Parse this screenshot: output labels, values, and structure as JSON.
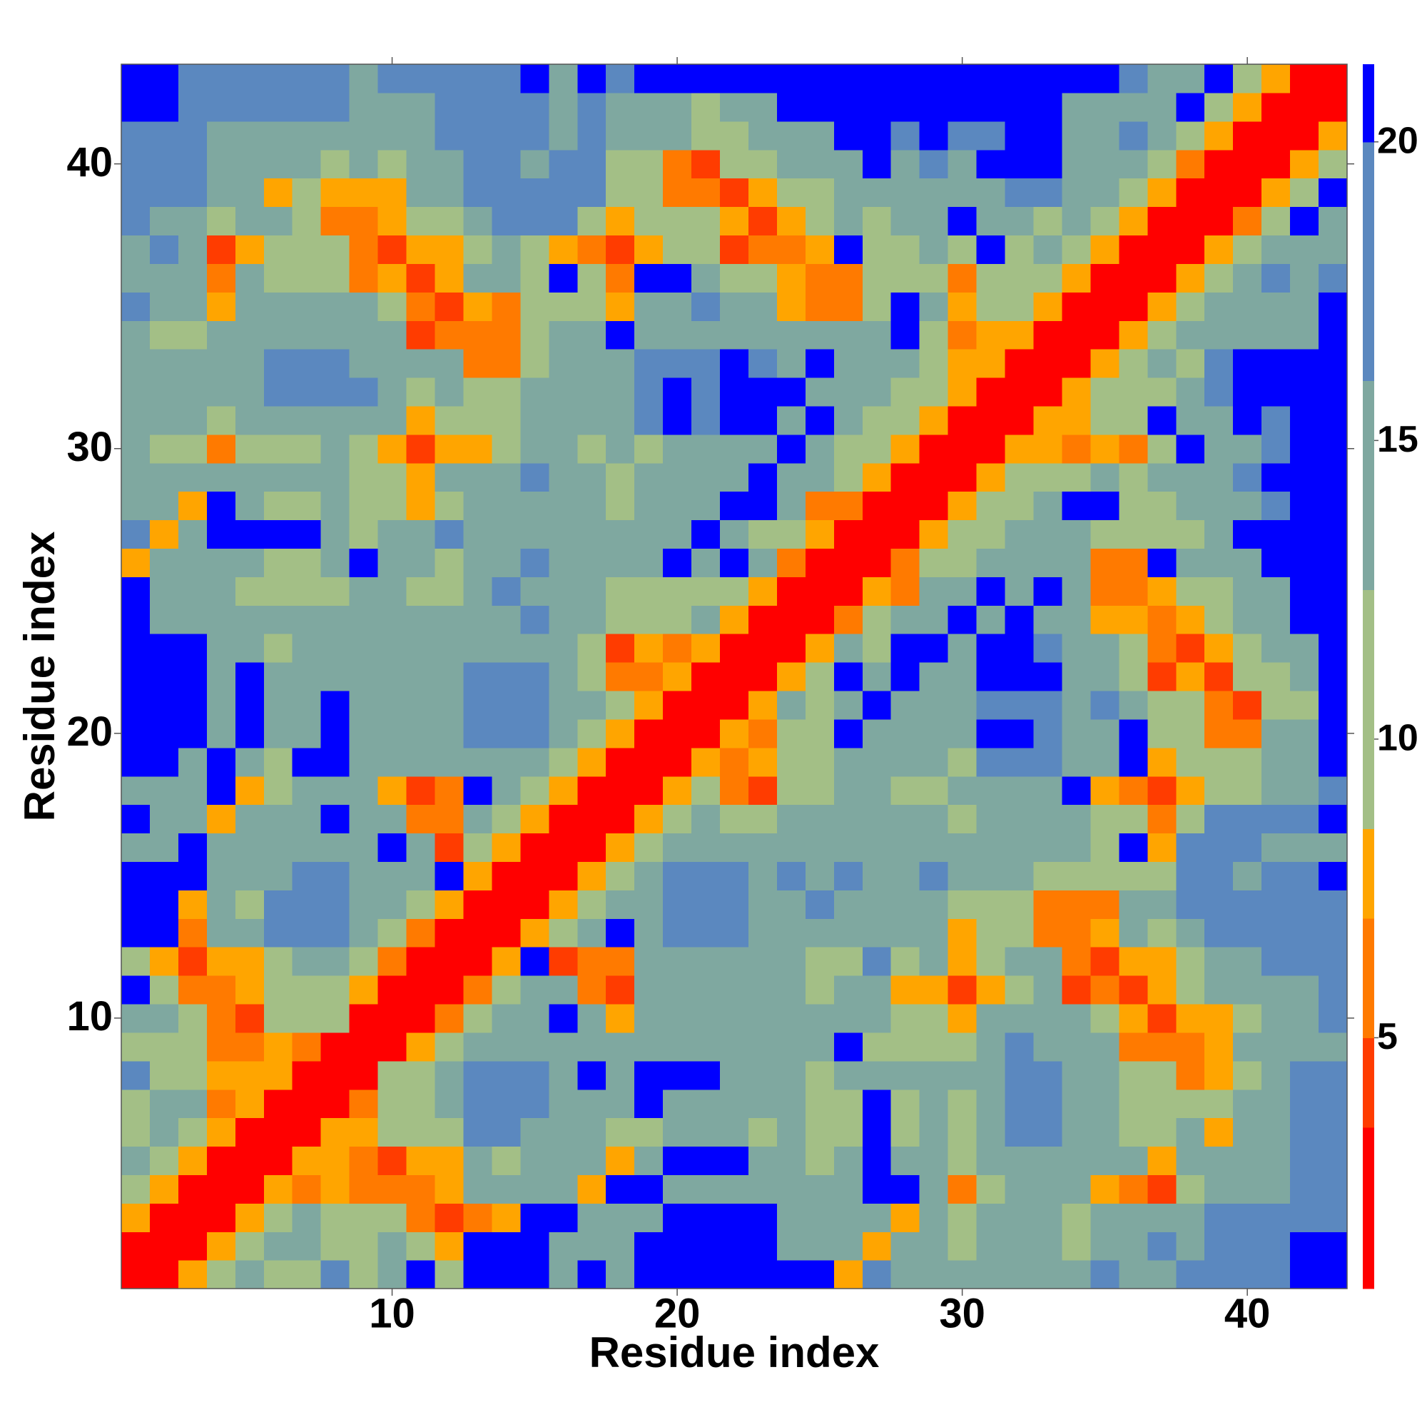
{
  "chart_data": {
    "type": "heatmap",
    "xlabel": "Residue index",
    "ylabel": "Residue index",
    "x": [
      1,
      2,
      3,
      4,
      5,
      6,
      7,
      8,
      9,
      10,
      11,
      12,
      13,
      14,
      15,
      16,
      17,
      18,
      19,
      20,
      21,
      22,
      23,
      24,
      25,
      26,
      27,
      28,
      29,
      30,
      31,
      32,
      33,
      34,
      35,
      36,
      37,
      38,
      39,
      40,
      41,
      42,
      43
    ],
    "xlim": [
      0.5,
      43.5
    ],
    "ylim": [
      0.5,
      43.5
    ],
    "xticks": [
      10,
      20,
      30,
      40
    ],
    "yticks": [
      10,
      20,
      30,
      40
    ],
    "symmetric": true,
    "z": [
      [
        1,
        3,
        8,
        10,
        14,
        10,
        10,
        17,
        10,
        14,
        21,
        10,
        21,
        21,
        21,
        14,
        21,
        14,
        21,
        21,
        21,
        21,
        21,
        21,
        21,
        8,
        17,
        14,
        14,
        14,
        14,
        14,
        14,
        14,
        17,
        14,
        14,
        17,
        17,
        17,
        17,
        21,
        21
      ],
      [
        1,
        3,
        8,
        10,
        14,
        14,
        10,
        10,
        14,
        10,
        8,
        21,
        21,
        21,
        14,
        14,
        14,
        21,
        21,
        21,
        21,
        21,
        14,
        14,
        14,
        8,
        14,
        14,
        10,
        14,
        14,
        14,
        10,
        14,
        14,
        17,
        14,
        17,
        17,
        17,
        21,
        21
      ],
      [
        1,
        3,
        8,
        10,
        14,
        10,
        10,
        10,
        6,
        4,
        6,
        8,
        21,
        21,
        14,
        14,
        14,
        21,
        21,
        21,
        21,
        14,
        14,
        14,
        14,
        8,
        14,
        10,
        14,
        14,
        14,
        10,
        14,
        14,
        14,
        14,
        17,
        17,
        17,
        17,
        17
      ],
      [
        1,
        3,
        8,
        6,
        8,
        6,
        6,
        6,
        8,
        14,
        14,
        14,
        14,
        8,
        21,
        21,
        14,
        14,
        14,
        14,
        14,
        14,
        14,
        21,
        21,
        14,
        6,
        10,
        14,
        14,
        14,
        8,
        6,
        4,
        10,
        14,
        14,
        14,
        17,
        17
      ],
      [
        1,
        3,
        8,
        8,
        6,
        4,
        8,
        8,
        14,
        10,
        14,
        14,
        14,
        8,
        14,
        21,
        21,
        21,
        14,
        14,
        10,
        14,
        21,
        14,
        14,
        10,
        14,
        14,
        14,
        14,
        14,
        14,
        8,
        14,
        14,
        14,
        14,
        17,
        17
      ],
      [
        1,
        3,
        8,
        8,
        10,
        10,
        10,
        17,
        17,
        14,
        14,
        14,
        10,
        10,
        14,
        14,
        14,
        10,
        14,
        10,
        10,
        21,
        10,
        14,
        10,
        14,
        17,
        17,
        14,
        14,
        10,
        10,
        14,
        8,
        14,
        14,
        17,
        17
      ],
      [
        1,
        3,
        6,
        10,
        10,
        14,
        17,
        17,
        17,
        14,
        14,
        14,
        21,
        14,
        14,
        14,
        14,
        14,
        10,
        10,
        21,
        10,
        14,
        10,
        14,
        17,
        17,
        14,
        14,
        10,
        10,
        10,
        10,
        14,
        14,
        17,
        17
      ],
      [
        1,
        3,
        10,
        10,
        14,
        17,
        17,
        17,
        14,
        21,
        14,
        21,
        21,
        21,
        14,
        14,
        14,
        10,
        14,
        14,
        14,
        14,
        14,
        14,
        17,
        17,
        14,
        14,
        10,
        10,
        6,
        8,
        10,
        14,
        17,
        17
      ],
      [
        1,
        3,
        8,
        10,
        14,
        14,
        14,
        14,
        14,
        14,
        14,
        14,
        14,
        14,
        14,
        14,
        14,
        21,
        10,
        10,
        10,
        10,
        14,
        17,
        14,
        14,
        14,
        6,
        6,
        6,
        8,
        14,
        14,
        14,
        14
      ],
      [
        1,
        3,
        6,
        10,
        14,
        14,
        21,
        14,
        8,
        14,
        14,
        14,
        14,
        14,
        14,
        14,
        14,
        14,
        10,
        10,
        8,
        14,
        14,
        14,
        14,
        10,
        8,
        4,
        8,
        8,
        10,
        14,
        14,
        17
      ],
      [
        1,
        3,
        6,
        10,
        14,
        14,
        6,
        4,
        14,
        14,
        14,
        14,
        14,
        14,
        10,
        14,
        14,
        8,
        8,
        4,
        8,
        10,
        14,
        4,
        6,
        4,
        8,
        10,
        14,
        14,
        14,
        14,
        17
      ],
      [
        1,
        3,
        8,
        21,
        4,
        6,
        6,
        14,
        14,
        14,
        14,
        14,
        14,
        10,
        10,
        17,
        10,
        14,
        8,
        10,
        14,
        14,
        6,
        4,
        8,
        8,
        10,
        14,
        14,
        17,
        17,
        17
      ],
      [
        1,
        3,
        8,
        10,
        14,
        21,
        14,
        17,
        17,
        17,
        14,
        14,
        14,
        14,
        14,
        14,
        14,
        8,
        10,
        10,
        6,
        6,
        8,
        14,
        10,
        14,
        17,
        17,
        17,
        17,
        17
      ],
      [
        1,
        3,
        8,
        10,
        14,
        14,
        17,
        17,
        17,
        14,
        14,
        17,
        14,
        14,
        14,
        14,
        10,
        10,
        10,
        6,
        6,
        6,
        14,
        14,
        17,
        17,
        17,
        17,
        17,
        17
      ],
      [
        1,
        3,
        8,
        10,
        14,
        17,
        17,
        17,
        14,
        17,
        14,
        17,
        14,
        14,
        17,
        14,
        14,
        14,
        10,
        10,
        10,
        10,
        10,
        17,
        17,
        14,
        17,
        17,
        21
      ],
      [
        1,
        3,
        8,
        10,
        14,
        14,
        14,
        14,
        14,
        14,
        14,
        14,
        14,
        14,
        14,
        14,
        14,
        14,
        14,
        10,
        21,
        8,
        17,
        17,
        17,
        14,
        14,
        14
      ],
      [
        1,
        3,
        8,
        10,
        14,
        10,
        10,
        14,
        14,
        14,
        14,
        14,
        14,
        10,
        14,
        14,
        14,
        14,
        10,
        10,
        6,
        10,
        17,
        17,
        17,
        17,
        21
      ],
      [
        1,
        3,
        8,
        10,
        6,
        4,
        10,
        10,
        14,
        14,
        10,
        10,
        14,
        14,
        14,
        14,
        21,
        8,
        6,
        4,
        8,
        10,
        10,
        14,
        14,
        17
      ],
      [
        1,
        3,
        8,
        6,
        8,
        10,
        10,
        14,
        14,
        14,
        14,
        10,
        17,
        17,
        17,
        14,
        14,
        21,
        8,
        10,
        10,
        10,
        14,
        14,
        21
      ],
      [
        1,
        3,
        8,
        6,
        10,
        10,
        21,
        14,
        14,
        14,
        14,
        21,
        21,
        17,
        14,
        14,
        21,
        10,
        10,
        6,
        6,
        14,
        14,
        21
      ],
      [
        1,
        3,
        8,
        14,
        10,
        14,
        21,
        14,
        14,
        14,
        17,
        17,
        17,
        14,
        17,
        14,
        10,
        10,
        6,
        4,
        10,
        10,
        21
      ],
      [
        1,
        3,
        8,
        10,
        21,
        14,
        21,
        14,
        14,
        21,
        21,
        21,
        14,
        14,
        10,
        4,
        8,
        4,
        10,
        10,
        14,
        21
      ],
      [
        1,
        3,
        8,
        14,
        10,
        21,
        21,
        14,
        21,
        21,
        17,
        14,
        14,
        10,
        6,
        4,
        8,
        10,
        14,
        14,
        21
      ],
      [
        1,
        3,
        6,
        10,
        14,
        14,
        21,
        14,
        21,
        14,
        14,
        8,
        8,
        6,
        8,
        10,
        14,
        14,
        21,
        21
      ],
      [
        1,
        3,
        8,
        6,
        14,
        14,
        21,
        14,
        21,
        14,
        6,
        6,
        8,
        10,
        10,
        14,
        14,
        21,
        21
      ],
      [
        1,
        3,
        6,
        10,
        10,
        14,
        14,
        14,
        14,
        6,
        6,
        21,
        14,
        14,
        14,
        21,
        21,
        21
      ],
      [
        1,
        3,
        8,
        10,
        10,
        14,
        14,
        14,
        10,
        10,
        10,
        10,
        14,
        21,
        21,
        21,
        21
      ],
      [
        1,
        3,
        8,
        10,
        10,
        14,
        21,
        21,
        10,
        10,
        14,
        14,
        14,
        17,
        21,
        21
      ],
      [
        1,
        3,
        8,
        10,
        10,
        10,
        14,
        10,
        14,
        14,
        14,
        17,
        21,
        21,
        21
      ],
      [
        1,
        3,
        8,
        8,
        6,
        8,
        6,
        10,
        21,
        14,
        14,
        17,
        21,
        21
      ],
      [
        1,
        3,
        8,
        8,
        10,
        10,
        21,
        14,
        14,
        21,
        17,
        21,
        21
      ],
      [
        1,
        3,
        8,
        10,
        10,
        10,
        14,
        17,
        21,
        21,
        21,
        21
      ],
      [
        1,
        3,
        8,
        10,
        14,
        10,
        17,
        21,
        21,
        21,
        21
      ],
      [
        1,
        3,
        8,
        10,
        14,
        14,
        14,
        14,
        14,
        21
      ],
      [
        1,
        3,
        8,
        10,
        14,
        14,
        14,
        14,
        21
      ],
      [
        1,
        3,
        8,
        10,
        14,
        17,
        14,
        17
      ],
      [
        1,
        3,
        8,
        10,
        14,
        14,
        14
      ],
      [
        1,
        3,
        6,
        10,
        21,
        14
      ],
      [
        1,
        3,
        8,
        10,
        21
      ],
      [
        1,
        3,
        8,
        10
      ],
      [
        1,
        3,
        8
      ],
      [
        1,
        3
      ],
      [
        1
      ]
    ],
    "colorbar": {
      "lim": [
        0.8,
        21.3
      ],
      "ticks": [
        5,
        10,
        15,
        20
      ],
      "bounds": [
        0.8,
        3.5,
        5,
        7,
        8.5,
        12.5,
        16,
        20,
        21.3
      ],
      "colors": [
        "#ff0000",
        "#ff3c00",
        "#ff7a00",
        "#ffa500",
        "#a3bf86",
        "#7fa8a0",
        "#5b88bf",
        "#0000ff"
      ]
    }
  }
}
